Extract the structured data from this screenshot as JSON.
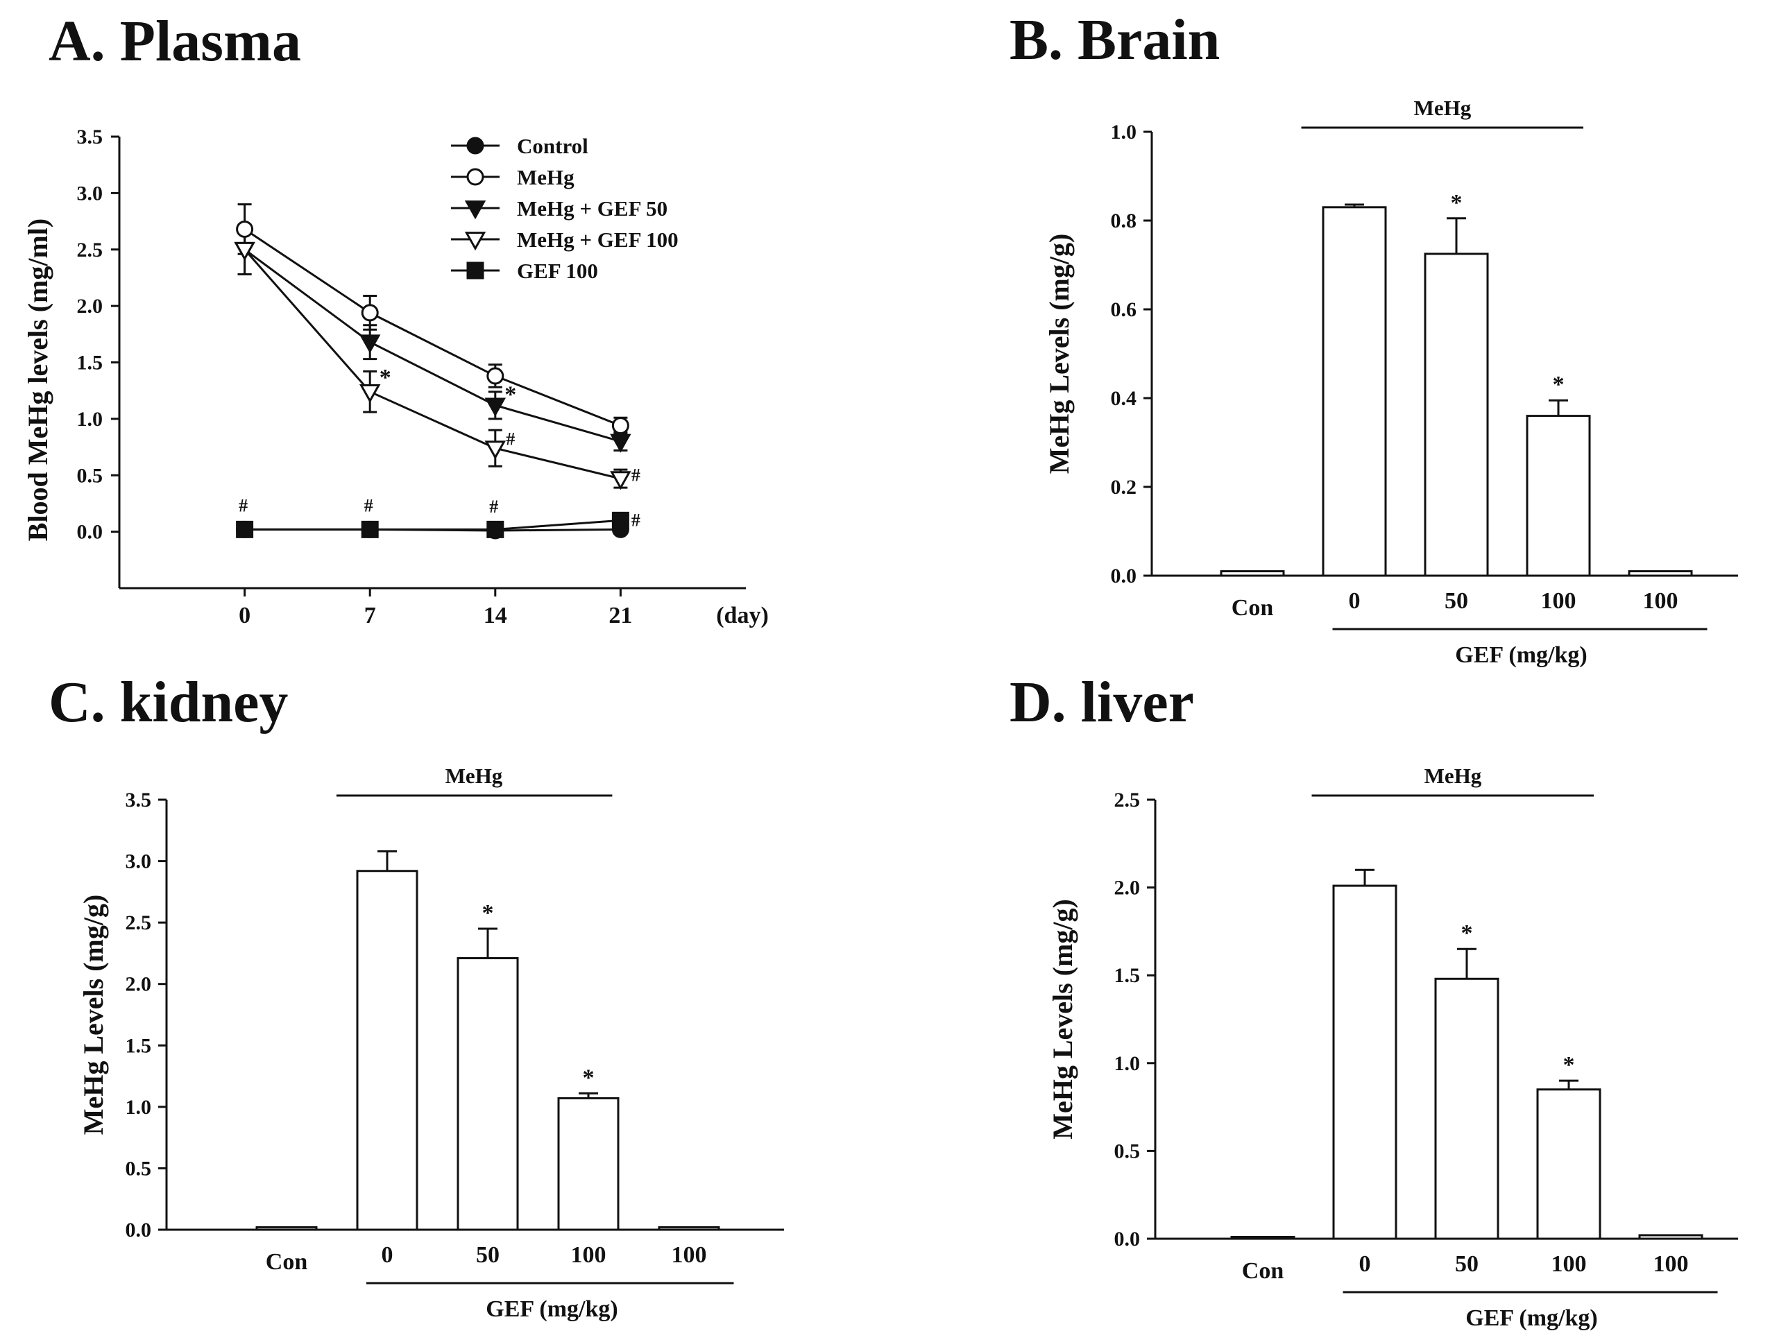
{
  "chart_data": [
    {
      "type": "line",
      "title": "A. Plasma",
      "ylabel": "Blood MeHg levels (mg/ml)",
      "xlabel": "(day)",
      "x": [
        0,
        7,
        14,
        21
      ],
      "xlim": [
        -7,
        28
      ],
      "ylim": [
        -0.5,
        3.5
      ],
      "yticks": [
        "3.5",
        "3.0",
        "2.5",
        "2.0",
        "1.5",
        "1.0",
        "0.5",
        "0.0"
      ],
      "xticks": [
        "0",
        "7",
        "14",
        "21"
      ],
      "legend_position": "top-right",
      "series": [
        {
          "name": "Control",
          "marker": "filled-circle",
          "values": [
            0.02,
            0.02,
            0.01,
            0.02
          ],
          "errors": [
            0,
            0,
            0,
            0
          ]
        },
        {
          "name": "MeHg",
          "marker": "open-circle",
          "values": [
            2.68,
            1.94,
            1.38,
            0.94
          ],
          "errors": [
            0.22,
            0.15,
            0.1,
            0.07
          ]
        },
        {
          "name": "MeHg + GEF 50",
          "marker": "filled-triangle-down",
          "values": [
            2.5,
            1.68,
            1.12,
            0.8
          ],
          "errors": [
            0.22,
            0.15,
            0.12,
            0.08
          ]
        },
        {
          "name": "MeHg + GEF 100",
          "marker": "open-triangle-down",
          "values": [
            2.5,
            1.24,
            0.74,
            0.47
          ],
          "errors": [
            0.22,
            0.18,
            0.16,
            0.08
          ]
        },
        {
          "name": "GEF 100",
          "marker": "filled-square",
          "values": [
            0.02,
            0.02,
            0.02,
            0.1
          ],
          "errors": [
            0,
            0,
            0,
            0
          ]
        }
      ],
      "annotations": [
        {
          "text": "*",
          "x": 7,
          "y": 1.3
        },
        {
          "text": "*",
          "x": 14,
          "y": 1.15
        },
        {
          "text": "#",
          "x": 14,
          "y": 0.77
        },
        {
          "text": "#",
          "x": 21,
          "y": 0.45
        },
        {
          "text": "#",
          "x": 0,
          "y": 0.18
        },
        {
          "text": "#",
          "x": 7,
          "y": 0.18
        },
        {
          "text": "#",
          "x": 14,
          "y": 0.17
        },
        {
          "text": "#",
          "x": 21,
          "y": 0.05
        }
      ]
    },
    {
      "type": "bar",
      "title": "B. Brain",
      "ylabel": "MeHg Levels (mg/g)",
      "xlabel": "GEF (mg/kg)",
      "group_label": "MeHg",
      "categories": [
        "Con",
        "0",
        "50",
        "100",
        "100"
      ],
      "values": [
        0.01,
        0.83,
        0.725,
        0.36,
        0.01
      ],
      "errors": [
        0,
        0.006,
        0.08,
        0.035,
        0
      ],
      "significance": [
        "",
        "",
        "*",
        "*",
        ""
      ],
      "ylim": [
        0,
        1.0
      ],
      "yticks": [
        "0.0",
        "0.2",
        "0.4",
        "0.6",
        "0.8",
        "1.0"
      ]
    },
    {
      "type": "bar",
      "title": "C. kidney",
      "ylabel": "MeHg Levels (mg/g)",
      "xlabel": "GEF (mg/kg)",
      "group_label": "MeHg",
      "categories": [
        "Con",
        "0",
        "50",
        "100",
        "100"
      ],
      "values": [
        0.02,
        2.92,
        2.21,
        1.07,
        0.02
      ],
      "errors": [
        0,
        0.16,
        0.24,
        0.04,
        0
      ],
      "significance": [
        "",
        "",
        "*",
        "*",
        ""
      ],
      "ylim": [
        0,
        3.5
      ],
      "yticks": [
        "0.0",
        "0.5",
        "1.0",
        "1.5",
        "2.0",
        "2.5",
        "3.0",
        "3.5"
      ]
    },
    {
      "type": "bar",
      "title": "D. liver",
      "ylabel": "MeHg Levels (mg/g)",
      "xlabel": "GEF (mg/kg)",
      "group_label": "MeHg",
      "categories": [
        "Con",
        "0",
        "50",
        "100",
        "100"
      ],
      "values": [
        0.01,
        2.01,
        1.48,
        0.85,
        0.02
      ],
      "errors": [
        0,
        0.09,
        0.17,
        0.05,
        0
      ],
      "significance": [
        "",
        "",
        "*",
        "*",
        ""
      ],
      "ylim": [
        0,
        2.5
      ],
      "yticks": [
        "0.0",
        "0.5",
        "1.0",
        "1.5",
        "2.0",
        "2.5"
      ]
    }
  ]
}
